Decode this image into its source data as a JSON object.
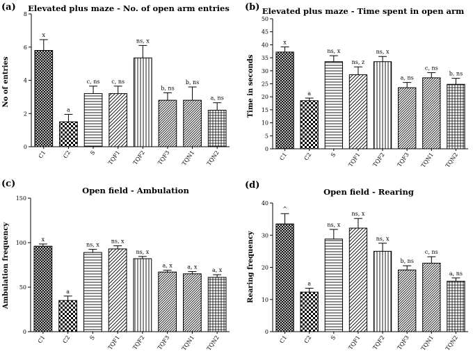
{
  "chart_data": [
    {
      "panel_label": "(a)",
      "type": "bar",
      "title": "Elevated plus maze - No. of open arm entries",
      "xlabel": "",
      "ylabel": "No of entries",
      "ylim": [
        0,
        8
      ],
      "yticks": [
        0,
        2,
        4,
        6,
        8
      ],
      "categories": [
        "C1",
        "C2",
        "S",
        "TQF1",
        "TQF2",
        "TQF3",
        "TQN1",
        "TQN2"
      ],
      "values": [
        5.8,
        1.5,
        3.2,
        3.2,
        5.35,
        2.8,
        2.8,
        2.2
      ],
      "errors": [
        0.65,
        0.45,
        0.45,
        0.45,
        0.75,
        0.45,
        0.8,
        0.45
      ],
      "annotations": [
        "x",
        "a",
        "c, ns",
        "c, ns",
        "ns, x",
        "b, ns",
        "b, ns",
        "a, ns"
      ],
      "patterns": [
        "crosshatch",
        "checker",
        "horizontal",
        "diagonal",
        "vertical",
        "diagonal-dense",
        "diagonal-dense",
        "grid"
      ]
    },
    {
      "panel_label": "(b)",
      "type": "bar",
      "title": "Elevated plus maze - Time spent in open arm",
      "xlabel": "",
      "ylabel": "Time in seconds",
      "ylim": [
        0,
        50
      ],
      "yticks": [
        0,
        5,
        10,
        15,
        20,
        25,
        30,
        35,
        40,
        45,
        50
      ],
      "categories": [
        "C1",
        "C2",
        "S",
        "TQF1",
        "TQF2",
        "TQF3",
        "TQN1",
        "TQN2"
      ],
      "values": [
        37.2,
        18.5,
        33.5,
        28.5,
        33.5,
        23.5,
        27.3,
        24.8
      ],
      "errors": [
        2.0,
        1.0,
        2.3,
        3.0,
        2.0,
        2.0,
        2.0,
        2.3
      ],
      "annotations": [
        "x",
        "a",
        "ns, x",
        "ns, z",
        "ns, x",
        "a, ns",
        "c, ns",
        "b, ns"
      ],
      "patterns": [
        "crosshatch",
        "checker",
        "horizontal",
        "diagonal",
        "vertical",
        "diagonal-dense",
        "diagonal-dense",
        "grid"
      ]
    },
    {
      "panel_label": "(c)",
      "type": "bar",
      "title": "Open field - Ambulation",
      "xlabel": "",
      "ylabel": "Ambulation frequency",
      "ylim": [
        0,
        150
      ],
      "yticks": [
        0,
        50,
        100,
        150
      ],
      "categories": [
        "C1",
        "C2",
        "S",
        "TQF1",
        "TQF2",
        "TQF3",
        "TQN1",
        "TQN2"
      ],
      "values": [
        96,
        35,
        89,
        93,
        82,
        67,
        65,
        61
      ],
      "errors": [
        2.5,
        5,
        3.5,
        3.5,
        2.5,
        2.0,
        2.5,
        3.0
      ],
      "annotations": [
        "x",
        "a",
        "ns, x",
        "ns, x",
        "ns, x",
        "a, x",
        "a, x",
        "a, x"
      ],
      "patterns": [
        "crosshatch",
        "checker",
        "horizontal",
        "diagonal",
        "vertical",
        "diagonal-dense",
        "diagonal-dense",
        "grid"
      ]
    },
    {
      "panel_label": "(d)",
      "type": "bar",
      "title": "Open field - Rearing",
      "xlabel": "",
      "ylabel": "Rearing frequency",
      "ylim": [
        0,
        40
      ],
      "yticks": [
        0,
        10,
        20,
        30,
        40
      ],
      "categories": [
        "C1",
        "C2",
        "S",
        "TQF1",
        "TQF2",
        "TQF3",
        "TQN1",
        "TQN2"
      ],
      "values": [
        33.5,
        12.3,
        28.8,
        32.2,
        25,
        19.2,
        21.3,
        15.7
      ],
      "errors": [
        3.2,
        1.2,
        3.0,
        3.0,
        2.5,
        1.3,
        2.0,
        1.0
      ],
      "annotations": [
        "^",
        "a",
        "ns, x",
        "ns, x",
        "ns, x",
        "b, ns",
        "c, ns",
        "a, ns"
      ],
      "patterns": [
        "crosshatch",
        "checker",
        "horizontal",
        "diagonal",
        "vertical",
        "diagonal-dense",
        "diagonal-dense",
        "grid"
      ]
    }
  ]
}
